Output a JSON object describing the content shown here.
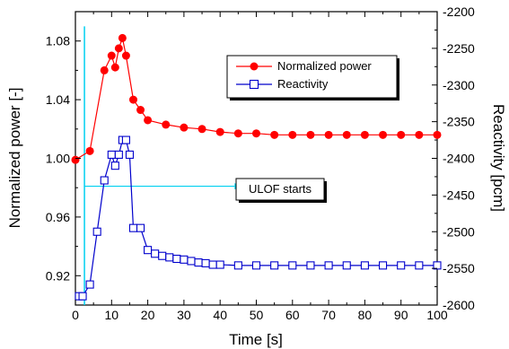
{
  "chart_data": {
    "type": "line",
    "title": "",
    "xlabel": "Time [s]",
    "ylabel": "Normalized power [-]",
    "y2label": "Reactivity [pcm]",
    "xlim": [
      0,
      100
    ],
    "ylim": [
      0.9,
      1.1
    ],
    "y2lim": [
      -2600,
      -2200
    ],
    "x_ticks": [
      0,
      10,
      20,
      30,
      40,
      50,
      60,
      70,
      80,
      90,
      100
    ],
    "y_ticks": [
      0.92,
      0.96,
      1.0,
      1.04,
      1.08
    ],
    "y2_ticks": [
      -2600,
      -2550,
      -2500,
      -2450,
      -2400,
      -2350,
      -2300,
      -2250,
      -2200
    ],
    "grid": false,
    "legend_position": "top-right",
    "series": [
      {
        "name": "Normalized power",
        "axis": "left",
        "color": "#ff0000",
        "marker": "filled-circle",
        "points": [
          [
            0,
            0.999
          ],
          [
            4,
            1.005
          ],
          [
            8,
            1.06
          ],
          [
            10,
            1.07
          ],
          [
            11,
            1.062
          ],
          [
            12,
            1.075
          ],
          [
            13,
            1.082
          ],
          [
            14,
            1.07
          ],
          [
            16,
            1.04
          ],
          [
            18,
            1.033
          ],
          [
            20,
            1.026
          ],
          [
            25,
            1.023
          ],
          [
            30,
            1.021
          ],
          [
            35,
            1.02
          ],
          [
            40,
            1.018
          ],
          [
            45,
            1.017
          ],
          [
            50,
            1.017
          ],
          [
            55,
            1.016
          ],
          [
            60,
            1.016
          ],
          [
            65,
            1.016
          ],
          [
            70,
            1.016
          ],
          [
            75,
            1.016
          ],
          [
            80,
            1.016
          ],
          [
            85,
            1.016
          ],
          [
            90,
            1.016
          ],
          [
            95,
            1.016
          ],
          [
            100,
            1.016
          ]
        ]
      },
      {
        "name": "Reactivity",
        "axis": "right",
        "color": "#0000cc",
        "marker": "open-square",
        "points": [
          [
            1,
            -2588
          ],
          [
            2,
            -2588
          ],
          [
            4,
            -2572
          ],
          [
            6,
            -2500
          ],
          [
            8,
            -2430
          ],
          [
            10,
            -2395
          ],
          [
            11,
            -2410
          ],
          [
            12,
            -2395
          ],
          [
            13,
            -2375
          ],
          [
            14,
            -2375
          ],
          [
            15,
            -2395
          ],
          [
            16,
            -2495
          ],
          [
            18,
            -2495
          ],
          [
            20,
            -2525
          ],
          [
            22,
            -2530
          ],
          [
            24,
            -2533
          ],
          [
            26,
            -2535
          ],
          [
            28,
            -2537
          ],
          [
            30,
            -2538
          ],
          [
            32,
            -2540
          ],
          [
            34,
            -2542
          ],
          [
            36,
            -2543
          ],
          [
            38,
            -2545
          ],
          [
            40,
            -2545
          ],
          [
            45,
            -2546
          ],
          [
            50,
            -2546
          ],
          [
            55,
            -2546
          ],
          [
            60,
            -2546
          ],
          [
            65,
            -2546
          ],
          [
            70,
            -2546
          ],
          [
            75,
            -2546
          ],
          [
            80,
            -2546
          ],
          [
            85,
            -2546
          ],
          [
            90,
            -2546
          ],
          [
            95,
            -2546
          ],
          [
            100,
            -2546
          ]
        ]
      }
    ],
    "annotations": [
      {
        "text": "ULOF starts",
        "vertical_line_x": 2.5,
        "arrow_from_x": 2.5,
        "arrow_to_x": 44,
        "arrow_y2": -2438,
        "color": "#00d0f0"
      }
    ]
  }
}
